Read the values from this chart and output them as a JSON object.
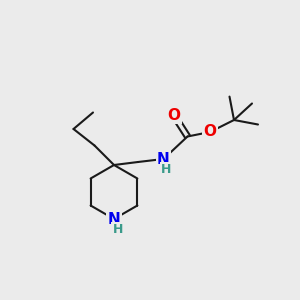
{
  "bg_color": "#ebebeb",
  "bond_color": "#1a1a1a",
  "N_color": "#0000ee",
  "O_color": "#ee0000",
  "H_color": "#3a9a8a",
  "bond_width": 1.5,
  "font_size_atom": 11,
  "font_size_H": 9,
  "xlim": [
    0,
    10
  ],
  "ylim": [
    0,
    10
  ]
}
